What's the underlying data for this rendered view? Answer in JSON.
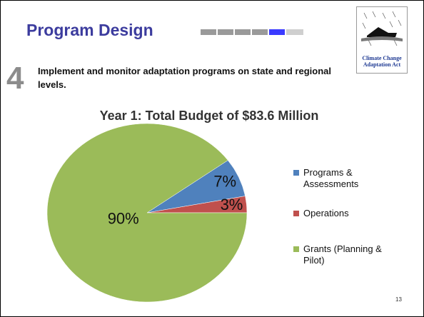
{
  "slide": {
    "title": "Program Design",
    "step_number": "4",
    "description": "Implement and monitor adaptation programs on state and regional levels.",
    "logo_text": "Climate Change Adaptation Act",
    "page_number": "13"
  },
  "chart_data": {
    "type": "pie",
    "title": "Year 1:  Total Budget of $83.6 Million",
    "categories": [
      "Programs & Assessments",
      "Operations",
      "Grants (Planning & Pilot)"
    ],
    "values": [
      7,
      3,
      90
    ],
    "value_labels": [
      "7%",
      "3%",
      "90%"
    ],
    "colors": [
      "#4f81bd",
      "#c0504d",
      "#9bbb59"
    ],
    "legend": "right"
  }
}
